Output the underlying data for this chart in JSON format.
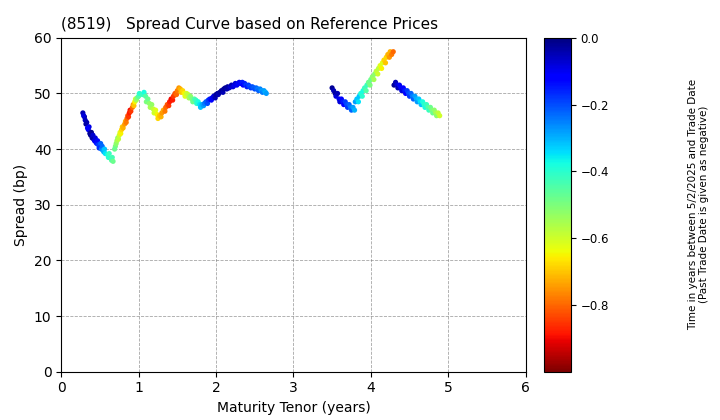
{
  "title": "(8519)   Spread Curve based on Reference Prices",
  "xlabel": "Maturity Tenor (years)",
  "ylabel": "Spread (bp)",
  "xlim": [
    0,
    6
  ],
  "ylim": [
    0,
    60
  ],
  "xticks": [
    0,
    1,
    2,
    3,
    4,
    5,
    6
  ],
  "yticks": [
    0,
    10,
    20,
    30,
    40,
    50,
    60
  ],
  "colorbar_label_line1": "Time in years between 5/2/2025 and Trade Date",
  "colorbar_label_line2": "(Past Trade Date is given as negative)",
  "colorbar_vmin": -1.0,
  "colorbar_vmax": 0.0,
  "colorbar_ticks": [
    0.0,
    -0.2,
    -0.4,
    -0.6,
    -0.8
  ],
  "background_color": "#ffffff",
  "points": [
    [
      0.28,
      46.5,
      -0.05
    ],
    [
      0.3,
      45.8,
      -0.03
    ],
    [
      0.29,
      46.0,
      -0.08
    ],
    [
      0.32,
      44.5,
      -0.02
    ],
    [
      0.31,
      45.2,
      -0.06
    ],
    [
      0.33,
      44.8,
      -0.04
    ],
    [
      0.35,
      43.5,
      -0.1
    ],
    [
      0.36,
      44.0,
      -0.09
    ],
    [
      0.34,
      43.8,
      -0.12
    ],
    [
      0.38,
      42.5,
      0.0
    ],
    [
      0.39,
      43.0,
      -0.01
    ],
    [
      0.37,
      42.8,
      -0.02
    ],
    [
      0.4,
      42.0,
      -0.05
    ],
    [
      0.41,
      42.5,
      -0.07
    ],
    [
      0.42,
      41.8,
      -0.03
    ],
    [
      0.43,
      41.5,
      -0.1
    ],
    [
      0.44,
      42.0,
      -0.08
    ],
    [
      0.45,
      41.2,
      -0.12
    ],
    [
      0.46,
      41.0,
      -0.15
    ],
    [
      0.47,
      41.5,
      -0.13
    ],
    [
      0.48,
      40.8,
      -0.18
    ],
    [
      0.5,
      40.5,
      -0.2
    ],
    [
      0.51,
      41.0,
      -0.22
    ],
    [
      0.49,
      40.2,
      -0.17
    ],
    [
      0.52,
      40.0,
      -0.25
    ],
    [
      0.53,
      40.5,
      -0.23
    ],
    [
      0.54,
      39.8,
      -0.28
    ],
    [
      0.55,
      39.5,
      -0.3
    ],
    [
      0.56,
      40.0,
      -0.32
    ],
    [
      0.57,
      39.2,
      -0.35
    ],
    [
      0.6,
      39.0,
      -0.38
    ],
    [
      0.61,
      38.5,
      -0.4
    ],
    [
      0.62,
      39.2,
      -0.42
    ],
    [
      0.65,
      38.0,
      -0.45
    ],
    [
      0.66,
      38.5,
      -0.43
    ],
    [
      0.67,
      37.8,
      -0.48
    ],
    [
      0.7,
      40.5,
      -0.5
    ],
    [
      0.71,
      41.0,
      -0.52
    ],
    [
      0.69,
      40.0,
      -0.48
    ],
    [
      0.72,
      41.5,
      -0.55
    ],
    [
      0.73,
      42.0,
      -0.53
    ],
    [
      0.74,
      41.8,
      -0.58
    ],
    [
      0.75,
      42.5,
      -0.6
    ],
    [
      0.76,
      43.0,
      -0.62
    ],
    [
      0.77,
      42.8,
      -0.65
    ],
    [
      0.78,
      43.5,
      -0.68
    ],
    [
      0.79,
      44.0,
      -0.7
    ],
    [
      0.8,
      43.8,
      -0.72
    ],
    [
      0.82,
      44.5,
      -0.75
    ],
    [
      0.83,
      45.0,
      -0.73
    ],
    [
      0.84,
      44.8,
      -0.78
    ],
    [
      0.85,
      45.5,
      -0.8
    ],
    [
      0.86,
      46.0,
      -0.82
    ],
    [
      0.87,
      45.8,
      -0.85
    ],
    [
      0.88,
      46.5,
      -0.88
    ],
    [
      0.89,
      47.0,
      -0.9
    ],
    [
      0.9,
      46.8,
      -0.85
    ],
    [
      0.92,
      47.5,
      -0.8
    ],
    [
      0.93,
      48.0,
      -0.75
    ],
    [
      0.94,
      47.8,
      -0.7
    ],
    [
      0.95,
      48.5,
      -0.65
    ],
    [
      0.96,
      49.0,
      -0.6
    ],
    [
      0.97,
      48.8,
      -0.55
    ],
    [
      0.98,
      49.2,
      -0.5
    ],
    [
      1.0,
      49.5,
      -0.45
    ],
    [
      1.01,
      50.0,
      -0.4
    ],
    [
      1.05,
      49.8,
      -0.42
    ],
    [
      1.07,
      50.2,
      -0.38
    ],
    [
      1.09,
      49.5,
      -0.45
    ],
    [
      1.1,
      48.5,
      -0.5
    ],
    [
      1.12,
      49.0,
      -0.48
    ],
    [
      1.14,
      48.2,
      -0.52
    ],
    [
      1.15,
      47.5,
      -0.55
    ],
    [
      1.17,
      48.0,
      -0.53
    ],
    [
      1.19,
      47.2,
      -0.58
    ],
    [
      1.2,
      46.5,
      -0.6
    ],
    [
      1.22,
      47.0,
      -0.62
    ],
    [
      1.24,
      46.2,
      -0.65
    ],
    [
      1.25,
      45.5,
      -0.68
    ],
    [
      1.27,
      46.0,
      -0.7
    ],
    [
      1.29,
      45.8,
      -0.72
    ],
    [
      1.3,
      46.5,
      -0.75
    ],
    [
      1.32,
      47.0,
      -0.73
    ],
    [
      1.34,
      46.8,
      -0.78
    ],
    [
      1.35,
      47.5,
      -0.8
    ],
    [
      1.37,
      48.0,
      -0.82
    ],
    [
      1.39,
      47.8,
      -0.85
    ],
    [
      1.4,
      48.5,
      -0.88
    ],
    [
      1.42,
      49.0,
      -0.9
    ],
    [
      1.44,
      48.8,
      -0.88
    ],
    [
      1.45,
      49.5,
      -0.85
    ],
    [
      1.47,
      50.0,
      -0.82
    ],
    [
      1.49,
      49.8,
      -0.8
    ],
    [
      1.5,
      50.5,
      -0.78
    ],
    [
      1.52,
      51.0,
      -0.75
    ],
    [
      1.54,
      50.8,
      -0.72
    ],
    [
      1.55,
      50.2,
      -0.7
    ],
    [
      1.57,
      50.5,
      -0.68
    ],
    [
      1.59,
      50.0,
      -0.65
    ],
    [
      1.6,
      49.5,
      -0.62
    ],
    [
      1.62,
      50.0,
      -0.6
    ],
    [
      1.64,
      49.8,
      -0.58
    ],
    [
      1.65,
      49.2,
      -0.55
    ],
    [
      1.67,
      49.5,
      -0.52
    ],
    [
      1.69,
      49.0,
      -0.5
    ],
    [
      1.7,
      48.5,
      -0.48
    ],
    [
      1.72,
      49.0,
      -0.45
    ],
    [
      1.74,
      48.8,
      -0.42
    ],
    [
      1.75,
      48.2,
      -0.4
    ],
    [
      1.77,
      48.5,
      -0.38
    ],
    [
      1.79,
      48.0,
      -0.35
    ],
    [
      1.8,
      47.5,
      -0.32
    ],
    [
      1.82,
      48.0,
      -0.3
    ],
    [
      1.84,
      47.8,
      -0.28
    ],
    [
      1.85,
      48.2,
      -0.25
    ],
    [
      1.87,
      48.5,
      -0.22
    ],
    [
      1.89,
      48.2,
      -0.2
    ],
    [
      1.9,
      48.8,
      -0.18
    ],
    [
      1.92,
      49.0,
      -0.15
    ],
    [
      1.94,
      48.8,
      -0.12
    ],
    [
      1.95,
      49.2,
      -0.1
    ],
    [
      1.97,
      49.5,
      -0.08
    ],
    [
      1.99,
      49.2,
      -0.05
    ],
    [
      2.0,
      49.8,
      -0.03
    ],
    [
      2.02,
      50.0,
      -0.02
    ],
    [
      2.03,
      49.8,
      -0.05
    ],
    [
      2.05,
      50.2,
      -0.03
    ],
    [
      2.07,
      50.5,
      -0.02
    ],
    [
      2.09,
      50.2,
      -0.05
    ],
    [
      2.1,
      50.8,
      -0.03
    ],
    [
      2.12,
      51.0,
      -0.02
    ],
    [
      2.14,
      50.8,
      -0.05
    ],
    [
      2.15,
      51.2,
      -0.03
    ],
    [
      2.17,
      51.0,
      -0.05
    ],
    [
      2.19,
      51.2,
      -0.08
    ],
    [
      2.2,
      51.5,
      -0.05
    ],
    [
      2.22,
      51.2,
      -0.08
    ],
    [
      2.24,
      51.5,
      -0.1
    ],
    [
      2.25,
      51.8,
      -0.08
    ],
    [
      2.27,
      51.5,
      -0.1
    ],
    [
      2.29,
      51.8,
      -0.12
    ],
    [
      2.3,
      52.0,
      -0.1
    ],
    [
      2.32,
      51.8,
      -0.12
    ],
    [
      2.34,
      52.0,
      -0.15
    ],
    [
      2.35,
      51.5,
      -0.12
    ],
    [
      2.37,
      51.8,
      -0.15
    ],
    [
      2.39,
      51.5,
      -0.18
    ],
    [
      2.4,
      51.2,
      -0.15
    ],
    [
      2.42,
      51.5,
      -0.18
    ],
    [
      2.44,
      51.2,
      -0.2
    ],
    [
      2.45,
      51.0,
      -0.18
    ],
    [
      2.47,
      51.2,
      -0.2
    ],
    [
      2.49,
      51.0,
      -0.22
    ],
    [
      2.5,
      50.8,
      -0.2
    ],
    [
      2.52,
      51.0,
      -0.22
    ],
    [
      2.54,
      50.8,
      -0.25
    ],
    [
      2.55,
      50.5,
      -0.22
    ],
    [
      2.57,
      50.8,
      -0.25
    ],
    [
      2.59,
      50.5,
      -0.28
    ],
    [
      2.6,
      50.2,
      -0.25
    ],
    [
      2.62,
      50.5,
      -0.28
    ],
    [
      2.64,
      50.2,
      -0.3
    ],
    [
      2.65,
      50.0,
      -0.28
    ],
    [
      3.5,
      51.0,
      -0.02
    ],
    [
      3.52,
      50.5,
      -0.05
    ],
    [
      3.54,
      50.0,
      -0.03
    ],
    [
      3.55,
      49.5,
      -0.08
    ],
    [
      3.57,
      50.0,
      -0.05
    ],
    [
      3.59,
      49.0,
      -0.1
    ],
    [
      3.6,
      48.5,
      -0.08
    ],
    [
      3.62,
      49.0,
      -0.12
    ],
    [
      3.64,
      48.5,
      -0.15
    ],
    [
      3.65,
      48.0,
      -0.12
    ],
    [
      3.67,
      48.5,
      -0.18
    ],
    [
      3.69,
      48.0,
      -0.2
    ],
    [
      3.7,
      47.5,
      -0.18
    ],
    [
      3.72,
      48.0,
      -0.22
    ],
    [
      3.74,
      47.5,
      -0.25
    ],
    [
      3.75,
      47.0,
      -0.22
    ],
    [
      3.77,
      47.5,
      -0.28
    ],
    [
      3.79,
      47.0,
      -0.3
    ],
    [
      3.8,
      48.5,
      -0.28
    ],
    [
      3.82,
      49.0,
      -0.32
    ],
    [
      3.84,
      48.5,
      -0.35
    ],
    [
      3.85,
      49.5,
      -0.32
    ],
    [
      3.87,
      50.0,
      -0.38
    ],
    [
      3.89,
      49.5,
      -0.4
    ],
    [
      3.9,
      50.5,
      -0.38
    ],
    [
      3.92,
      51.0,
      -0.42
    ],
    [
      3.94,
      50.5,
      -0.45
    ],
    [
      3.95,
      51.5,
      -0.42
    ],
    [
      3.97,
      52.0,
      -0.48
    ],
    [
      3.99,
      51.5,
      -0.5
    ],
    [
      4.0,
      52.5,
      -0.48
    ],
    [
      4.02,
      53.0,
      -0.52
    ],
    [
      4.04,
      52.5,
      -0.55
    ],
    [
      4.05,
      53.5,
      -0.52
    ],
    [
      4.07,
      54.0,
      -0.58
    ],
    [
      4.09,
      53.5,
      -0.6
    ],
    [
      4.1,
      54.5,
      -0.58
    ],
    [
      4.12,
      55.0,
      -0.62
    ],
    [
      4.14,
      54.5,
      -0.65
    ],
    [
      4.15,
      55.5,
      -0.62
    ],
    [
      4.17,
      56.0,
      -0.68
    ],
    [
      4.19,
      55.5,
      -0.7
    ],
    [
      4.2,
      56.5,
      -0.68
    ],
    [
      4.22,
      57.0,
      -0.72
    ],
    [
      4.24,
      56.5,
      -0.75
    ],
    [
      4.25,
      57.5,
      -0.72
    ],
    [
      4.27,
      57.0,
      -0.78
    ],
    [
      4.29,
      57.5,
      -0.8
    ],
    [
      4.3,
      51.5,
      -0.02
    ],
    [
      4.32,
      52.0,
      -0.05
    ],
    [
      4.34,
      51.5,
      -0.08
    ],
    [
      4.35,
      51.0,
      -0.05
    ],
    [
      4.37,
      51.5,
      -0.1
    ],
    [
      4.39,
      51.0,
      -0.12
    ],
    [
      4.4,
      50.5,
      -0.08
    ],
    [
      4.42,
      51.0,
      -0.12
    ],
    [
      4.44,
      50.5,
      -0.15
    ],
    [
      4.45,
      50.0,
      -0.12
    ],
    [
      4.47,
      50.5,
      -0.18
    ],
    [
      4.49,
      50.0,
      -0.2
    ],
    [
      4.5,
      49.5,
      -0.18
    ],
    [
      4.52,
      50.0,
      -0.22
    ],
    [
      4.54,
      49.5,
      -0.25
    ],
    [
      4.55,
      49.0,
      -0.22
    ],
    [
      4.57,
      49.5,
      -0.28
    ],
    [
      4.59,
      49.0,
      -0.3
    ],
    [
      4.6,
      48.5,
      -0.28
    ],
    [
      4.62,
      49.0,
      -0.32
    ],
    [
      4.64,
      48.5,
      -0.35
    ],
    [
      4.65,
      48.0,
      -0.32
    ],
    [
      4.67,
      48.5,
      -0.38
    ],
    [
      4.69,
      48.0,
      -0.4
    ],
    [
      4.7,
      47.5,
      -0.38
    ],
    [
      4.72,
      48.0,
      -0.42
    ],
    [
      4.74,
      47.5,
      -0.45
    ],
    [
      4.75,
      47.0,
      -0.42
    ],
    [
      4.77,
      47.5,
      -0.48
    ],
    [
      4.79,
      47.0,
      -0.5
    ],
    [
      4.8,
      46.5,
      -0.48
    ],
    [
      4.82,
      47.0,
      -0.52
    ],
    [
      4.84,
      46.5,
      -0.55
    ],
    [
      4.85,
      46.0,
      -0.52
    ],
    [
      4.87,
      46.5,
      -0.58
    ],
    [
      4.89,
      46.0,
      -0.6
    ]
  ]
}
